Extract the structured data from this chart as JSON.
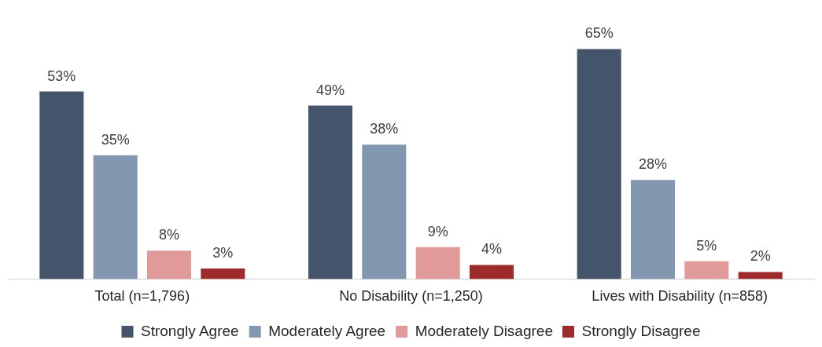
{
  "chart_data": {
    "type": "bar",
    "categories": [
      "Total (n=1,796)",
      "No Disability (n=1,250)",
      "Lives with Disability (n=858)"
    ],
    "series": [
      {
        "name": "Strongly Agree",
        "color": "#44546a",
        "values": [
          53,
          49,
          65
        ],
        "value_labels": [
          "53%",
          "49%",
          "65%"
        ]
      },
      {
        "name": "Moderately Agree",
        "color": "#8497b0",
        "values": [
          35,
          38,
          28
        ],
        "value_labels": [
          "35%",
          "38%",
          "28%"
        ]
      },
      {
        "name": "Moderately Disagree",
        "color": "#e09a9a",
        "values": [
          8,
          9,
          5
        ],
        "value_labels": [
          "8%",
          "9%",
          "5%"
        ]
      },
      {
        "name": "Strongly Disagree",
        "color": "#9e2a2b",
        "values": [
          3,
          4,
          2
        ],
        "value_labels": [
          "3%",
          "4%",
          "2%"
        ]
      }
    ],
    "grid": false,
    "legend": "bottom",
    "tick_labels": "x"
  }
}
